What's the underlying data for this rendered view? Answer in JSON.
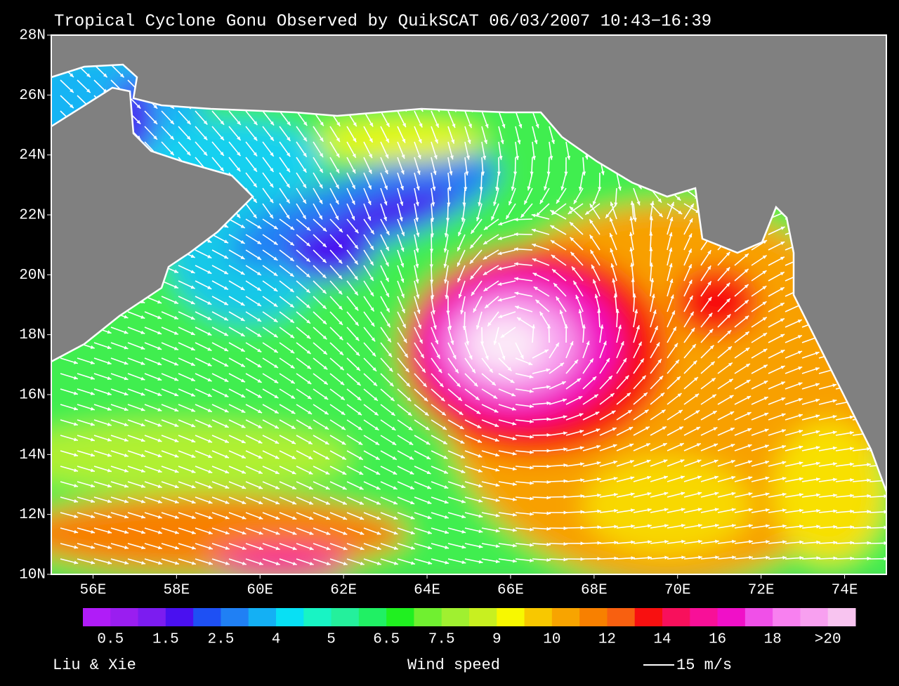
{
  "title": "Tropical Cyclone Gonu Observed by QuikSCAT  06/03/2007 10:43−16:39",
  "map": {
    "lat_labels": [
      "28N",
      "26N",
      "24N",
      "22N",
      "20N",
      "18N",
      "16N",
      "14N",
      "12N",
      "10N"
    ],
    "lon_labels": [
      "56E",
      "58E",
      "60E",
      "62E",
      "64E",
      "66E",
      "68E",
      "70E",
      "72E",
      "74E"
    ],
    "land_color": "#808080",
    "coast_color": "#ffffff",
    "arrow_color": "#ffffff"
  },
  "colorbar": {
    "colors": [
      "#b01cf8",
      "#9a1ef0",
      "#7c1cf0",
      "#4a10f0",
      "#1e50f4",
      "#2080f4",
      "#14b0f4",
      "#08e0f4",
      "#18f4c4",
      "#24f09c",
      "#20f064",
      "#20f020",
      "#70f030",
      "#a0f030",
      "#c8f020",
      "#f8f800",
      "#f8c800",
      "#f8a400",
      "#f88000",
      "#f86010",
      "#f81010",
      "#f8105c",
      "#f81098",
      "#f010c8",
      "#f050e8",
      "#f880f0",
      "#f8a0f0",
      "#f8c4f0"
    ],
    "labels": [
      "0.5",
      "1.5",
      "2.5",
      "4",
      "5",
      "6.5",
      "7.5",
      "9",
      "10",
      "12",
      "14",
      "16",
      "18",
      ">20"
    ]
  },
  "footer": {
    "credit": "Liu & Xie",
    "label": "Wind speed",
    "scale": "15 m/s"
  }
}
